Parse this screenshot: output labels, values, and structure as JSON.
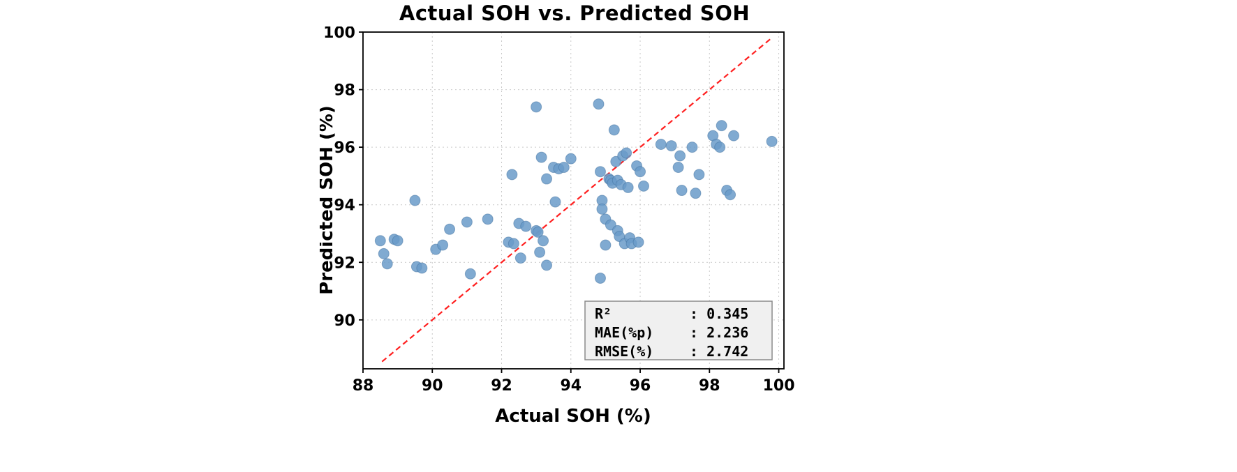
{
  "chart_data": {
    "type": "scatter",
    "title": "Actual SOH vs. Predicted SOH",
    "xlabel": "Actual SOH (%)",
    "ylabel": "Predicted SOH (%)",
    "xlim": [
      88,
      100.15
    ],
    "ylim": [
      88.3,
      100
    ],
    "x_ticks": [
      88,
      90,
      92,
      94,
      96,
      98,
      100
    ],
    "y_ticks": [
      90,
      92,
      94,
      96,
      98,
      100
    ],
    "grid": true,
    "legend": "none",
    "identity_line": {
      "x1": 88.55,
      "y1": 88.55,
      "x2": 99.8,
      "y2": 99.8,
      "style": "dashed"
    },
    "points": [
      [
        88.5,
        92.75
      ],
      [
        88.6,
        92.3
      ],
      [
        88.7,
        91.95
      ],
      [
        88.9,
        92.8
      ],
      [
        89.0,
        92.75
      ],
      [
        89.5,
        94.15
      ],
      [
        89.55,
        91.85
      ],
      [
        89.7,
        91.8
      ],
      [
        90.1,
        92.45
      ],
      [
        90.3,
        92.6
      ],
      [
        90.5,
        93.15
      ],
      [
        91.0,
        93.4
      ],
      [
        91.1,
        91.6
      ],
      [
        91.6,
        93.5
      ],
      [
        92.2,
        92.7
      ],
      [
        92.3,
        95.05
      ],
      [
        92.35,
        92.65
      ],
      [
        92.5,
        93.35
      ],
      [
        92.55,
        92.15
      ],
      [
        92.7,
        93.25
      ],
      [
        93.0,
        97.4
      ],
      [
        93.0,
        93.1
      ],
      [
        93.05,
        93.05
      ],
      [
        93.1,
        92.35
      ],
      [
        93.15,
        95.65
      ],
      [
        93.2,
        92.75
      ],
      [
        93.3,
        94.9
      ],
      [
        93.3,
        91.9
      ],
      [
        93.5,
        95.3
      ],
      [
        93.55,
        94.1
      ],
      [
        93.65,
        95.25
      ],
      [
        93.8,
        95.3
      ],
      [
        94.0,
        95.6
      ],
      [
        94.8,
        97.5
      ],
      [
        94.85,
        95.15
      ],
      [
        94.9,
        94.15
      ],
      [
        94.9,
        93.85
      ],
      [
        95.0,
        93.5
      ],
      [
        95.0,
        92.6
      ],
      [
        94.85,
        91.45
      ],
      [
        95.1,
        94.9
      ],
      [
        95.15,
        94.85
      ],
      [
        95.15,
        93.3
      ],
      [
        95.2,
        94.75
      ],
      [
        95.25,
        96.6
      ],
      [
        95.3,
        95.5
      ],
      [
        95.35,
        94.85
      ],
      [
        95.35,
        93.1
      ],
      [
        95.4,
        92.9
      ],
      [
        95.45,
        94.7
      ],
      [
        95.5,
        95.7
      ],
      [
        95.55,
        92.65
      ],
      [
        95.6,
        95.8
      ],
      [
        95.65,
        94.6
      ],
      [
        95.7,
        92.85
      ],
      [
        95.75,
        92.65
      ],
      [
        95.9,
        95.35
      ],
      [
        95.95,
        92.7
      ],
      [
        96.0,
        95.15
      ],
      [
        96.1,
        94.65
      ],
      [
        96.6,
        96.1
      ],
      [
        96.9,
        96.05
      ],
      [
        97.1,
        95.3
      ],
      [
        97.15,
        95.7
      ],
      [
        97.2,
        94.5
      ],
      [
        97.5,
        96.0
      ],
      [
        97.6,
        94.4
      ],
      [
        97.7,
        95.05
      ],
      [
        98.1,
        96.4
      ],
      [
        98.2,
        96.1
      ],
      [
        98.3,
        96.0
      ],
      [
        98.35,
        96.75
      ],
      [
        98.5,
        94.5
      ],
      [
        98.6,
        94.35
      ],
      [
        98.7,
        96.4
      ],
      [
        99.8,
        96.2
      ]
    ],
    "stats": [
      {
        "label": "R²",
        "value": "0.345"
      },
      {
        "label": "MAE(%p)",
        "value": "2.236"
      },
      {
        "label": "RMSE(%)",
        "value": "2.742"
      }
    ],
    "colors": {
      "point": "#6A9BC9",
      "point_edge": "#41729F",
      "line": "#FF1F1F",
      "grid": "#C9C9C9",
      "frame": "#000000",
      "stats_bg": "#F0F0F0",
      "stats_border": "#8A8A8A"
    }
  }
}
